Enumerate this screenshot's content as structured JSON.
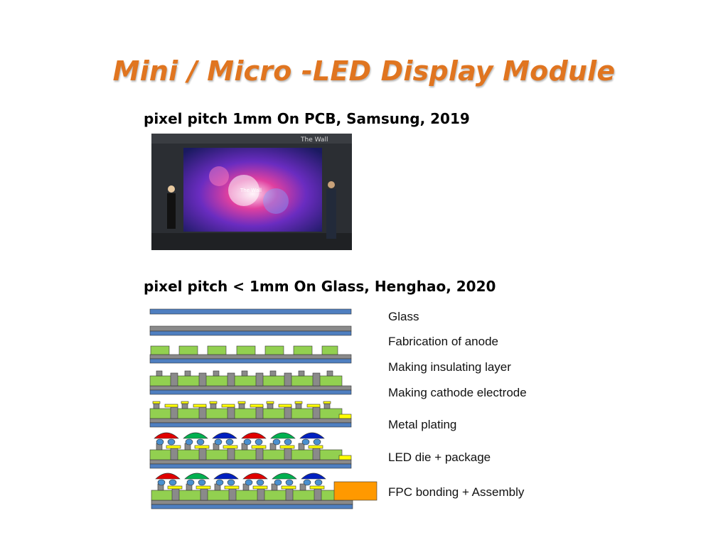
{
  "slide": {
    "title": "Mini / Micro -LED Display Module",
    "section1": {
      "heading": "pixel pitch 1mm On PCB, Samsung, 2019",
      "photo_caption": "The Wall",
      "photo_screen_text": "The Wall"
    },
    "section2": {
      "heading": "pixel pitch < 1mm On Glass, Henghao, 2020"
    },
    "steps": [
      "Glass",
      "Fabrication of anode",
      "Making insulating layer",
      "Making cathode electrode",
      "Metal plating",
      "LED die + package",
      "FPC bonding + Assembly"
    ]
  },
  "colors": {
    "title": "#e07520",
    "glass": "#4f7fc0",
    "metal": "#8a8a8a",
    "anode": "#92d050",
    "plating": "#ffff00",
    "led_red": "#e00000",
    "led_green": "#00b050",
    "led_blue": "#0020c0",
    "fpc": "#ff9900"
  }
}
